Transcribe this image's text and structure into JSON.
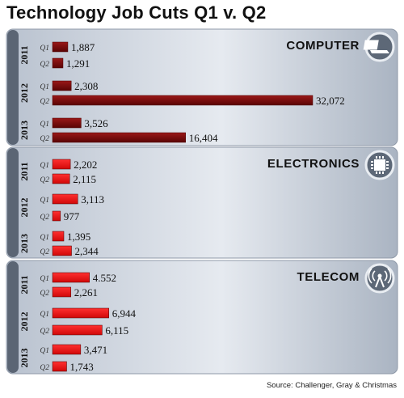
{
  "title": "Technology Job Cuts Q1 v. Q2",
  "source": "Source: Challenger, Gray & Christmas",
  "colors": {
    "computer": "#7a0a0a",
    "electronics": "#f01818",
    "telecom": "#d41212",
    "panel": "#cfd6e0"
  },
  "chart_data": {
    "type": "bar",
    "orientation": "horizontal",
    "title": "Technology Job Cuts Q1 v. Q2",
    "panels": [
      {
        "name": "COMPUTER",
        "icon": "laptop-icon",
        "years": [
          {
            "year": "2011",
            "bars": [
              {
                "q": "Q1",
                "value": 1887,
                "label": "1,887"
              },
              {
                "q": "Q2",
                "value": 1291,
                "label": "1,291"
              }
            ]
          },
          {
            "year": "2012",
            "bars": [
              {
                "q": "Q1",
                "value": 2308,
                "label": "2,308"
              },
              {
                "q": "Q2",
                "value": 32072,
                "label": "32,072"
              }
            ]
          },
          {
            "year": "2013",
            "bars": [
              {
                "q": "Q1",
                "value": 3526,
                "label": "3,526"
              },
              {
                "q": "Q2",
                "value": 16404,
                "label": "16,404"
              }
            ]
          }
        ]
      },
      {
        "name": "ELECTRONICS",
        "icon": "chip-icon",
        "years": [
          {
            "year": "2011",
            "bars": [
              {
                "q": "Q1",
                "value": 2202,
                "label": "2,202"
              },
              {
                "q": "Q2",
                "value": 2115,
                "label": "2,115"
              }
            ]
          },
          {
            "year": "2012",
            "bars": [
              {
                "q": "Q1",
                "value": 3113,
                "label": "3,113"
              },
              {
                "q": "Q2",
                "value": 977,
                "label": "977"
              }
            ]
          },
          {
            "year": "2013",
            "bars": [
              {
                "q": "Q1",
                "value": 1395,
                "label": "1,395"
              },
              {
                "q": "Q2",
                "value": 2344,
                "label": "2,344"
              }
            ]
          }
        ]
      },
      {
        "name": "TELECOM",
        "icon": "antenna-icon",
        "years": [
          {
            "year": "2011",
            "bars": [
              {
                "q": "Q1",
                "value": 4552,
                "label": "4.552"
              },
              {
                "q": "Q2",
                "value": 2261,
                "label": "2,261"
              }
            ]
          },
          {
            "year": "2012",
            "bars": [
              {
                "q": "Q1",
                "value": 6944,
                "label": "6,944"
              },
              {
                "q": "Q2",
                "value": 6115,
                "label": "6,115"
              }
            ]
          },
          {
            "year": "2013",
            "bars": [
              {
                "q": "Q1",
                "value": 3471,
                "label": "3,471"
              },
              {
                "q": "Q2",
                "value": 1743,
                "label": "1,743"
              }
            ]
          }
        ]
      }
    ]
  }
}
